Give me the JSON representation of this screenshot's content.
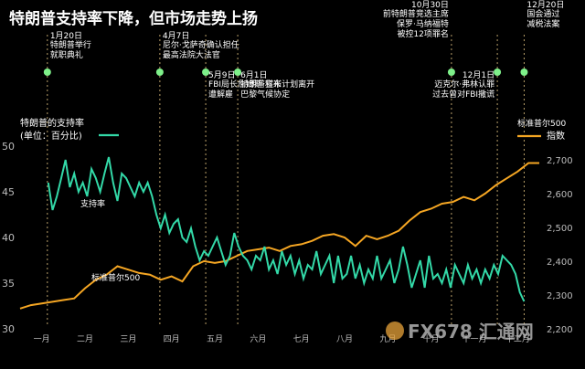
{
  "title": "特朗普支持率下降，但市场走势上扬",
  "colors": {
    "background": "#000000",
    "approval": "#33d9a8",
    "sp500": "#f5a623",
    "event_dot": "#7ef08a",
    "event_line": "#b9a06a",
    "text": "#ffffff",
    "axis_text": "#bdbdbd"
  },
  "legend": {
    "left_title": "特朗普的支持率",
    "left_unit": "(单位：百分比)",
    "right_title": "标准普尔500",
    "right_unit": "指数"
  },
  "annotations": {
    "approval_label": "支持率",
    "sp500_label": "标准普尔500"
  },
  "events": [
    {
      "date": "1月20日",
      "text": [
        "特朗普举行",
        "就职典礼"
      ],
      "month": 0.63
    },
    {
      "date": "4月7日",
      "text": [
        "尼尔·戈萨奇确认担任",
        "最高法院大法官"
      ],
      "month": 3.23
    },
    {
      "date": "5月9日",
      "text": [
        "FBI局长詹姆斯·科米",
        "遭解雇"
      ],
      "month": 4.29
    },
    {
      "date": "6月1日",
      "text": [
        "特朗普宣布计划离开",
        "巴黎气候协定"
      ],
      "month": 5.03
    },
    {
      "date": "10月30日",
      "text": [
        "前特朗普竞选主席",
        "保罗·马纳福特",
        "被控12项罪名"
      ],
      "month": 9.97
    },
    {
      "date": "12月1日",
      "text": [
        "迈克尔·弗林认罪",
        "过去曾对FBI撒谎"
      ],
      "month": 11.03
    },
    {
      "date": "12月20日",
      "text": [
        "国会通过",
        "减税法案"
      ],
      "month": 11.65
    }
  ],
  "watermark": {
    "text": "FX678 汇通网"
  },
  "chart_data": {
    "type": "line",
    "title": "特朗普支持率下降，但市场走势上扬",
    "x_ticks": [
      "一月",
      "二月",
      "三月",
      "四月",
      "五月",
      "六月",
      "七月",
      "八月",
      "九月",
      "十月",
      "十一月",
      "十二月"
    ],
    "x_range_months": [
      0,
      12
    ],
    "left_axis": {
      "label": "特朗普的支持率 (单位：百分比)",
      "ticks": [
        30,
        35,
        40,
        45,
        50
      ],
      "ylim": [
        30,
        50
      ]
    },
    "right_axis": {
      "label": "标准普尔500 指数",
      "ticks": [
        2200,
        2300,
        2400,
        2500,
        2600,
        2700
      ],
      "ylim": [
        2200,
        2740
      ]
    },
    "series": [
      {
        "name": "支持率",
        "axis": "left",
        "x": [
          0.65,
          0.75,
          0.85,
          0.95,
          1.05,
          1.15,
          1.25,
          1.35,
          1.45,
          1.55,
          1.65,
          1.75,
          1.85,
          1.95,
          2.05,
          2.15,
          2.25,
          2.35,
          2.45,
          2.55,
          2.65,
          2.75,
          2.85,
          2.95,
          3.05,
          3.15,
          3.25,
          3.35,
          3.45,
          3.55,
          3.65,
          3.75,
          3.85,
          3.95,
          4.05,
          4.15,
          4.25,
          4.35,
          4.45,
          4.55,
          4.65,
          4.75,
          4.85,
          4.95,
          5.05,
          5.15,
          5.25,
          5.35,
          5.45,
          5.55,
          5.65,
          5.75,
          5.85,
          5.95,
          6.05,
          6.15,
          6.25,
          6.35,
          6.45,
          6.55,
          6.65,
          6.75,
          6.85,
          6.95,
          7.05,
          7.15,
          7.25,
          7.35,
          7.45,
          7.55,
          7.65,
          7.75,
          7.85,
          7.95,
          8.05,
          8.15,
          8.25,
          8.35,
          8.45,
          8.55,
          8.65,
          8.75,
          8.85,
          8.95,
          9.05,
          9.15,
          9.25,
          9.35,
          9.45,
          9.55,
          9.65,
          9.75,
          9.85,
          9.95,
          10.05,
          10.15,
          10.25,
          10.35,
          10.45,
          10.55,
          10.65,
          10.75,
          10.85,
          10.95,
          11.05,
          11.15,
          11.25,
          11.35,
          11.45,
          11.55,
          11.65
        ],
        "y": [
          46,
          43,
          44.5,
          46.5,
          48.5,
          45.5,
          47,
          45,
          46,
          44.5,
          47.5,
          46.5,
          45,
          47,
          48.8,
          46,
          44,
          47,
          46.5,
          45.5,
          44.5,
          46,
          45,
          46,
          44.5,
          42.5,
          41,
          42.5,
          40.5,
          41.5,
          42,
          40,
          39.5,
          41,
          39,
          37.5,
          38.5,
          38,
          39,
          40,
          38.5,
          37,
          38,
          40.5,
          39,
          38,
          37.5,
          36.5,
          38,
          37.5,
          39,
          36.5,
          37.5,
          36,
          38.5,
          37,
          38,
          36,
          37.5,
          35.5,
          37,
          36.5,
          38.5,
          36,
          37,
          38,
          35,
          38,
          35.5,
          36,
          38,
          35.5,
          37,
          35,
          36.5,
          35.5,
          38,
          35.5,
          36.5,
          37.5,
          35,
          36.5,
          39,
          37,
          34.5,
          36,
          37.5,
          34.5,
          38,
          35.5,
          36,
          35,
          36.5,
          34.5,
          37,
          36,
          35,
          37,
          35.5,
          36.5,
          35,
          36.5,
          35.5,
          37,
          36,
          38,
          37.5,
          37,
          36,
          34,
          33
        ]
      },
      {
        "name": "标准普尔500",
        "axis": "right",
        "x": [
          0,
          0.25,
          0.5,
          0.75,
          1.0,
          1.25,
          1.5,
          1.75,
          2.0,
          2.25,
          2.5,
          2.75,
          3.0,
          3.25,
          3.5,
          3.75,
          4.0,
          4.25,
          4.5,
          4.75,
          5.0,
          5.25,
          5.5,
          5.75,
          6.0,
          6.25,
          6.5,
          6.75,
          7.0,
          7.25,
          7.5,
          7.75,
          8.0,
          8.25,
          8.5,
          8.75,
          9.0,
          9.25,
          9.5,
          9.75,
          10.0,
          10.25,
          10.5,
          10.75,
          11.0,
          11.25,
          11.5,
          11.75,
          12.0
        ],
        "y": [
          2260,
          2270,
          2275,
          2280,
          2285,
          2290,
          2320,
          2345,
          2360,
          2385,
          2375,
          2365,
          2360,
          2345,
          2355,
          2340,
          2385,
          2400,
          2395,
          2400,
          2415,
          2430,
          2435,
          2440,
          2430,
          2445,
          2450,
          2460,
          2475,
          2480,
          2470,
          2445,
          2475,
          2465,
          2475,
          2490,
          2520,
          2545,
          2555,
          2570,
          2575,
          2590,
          2580,
          2600,
          2625,
          2645,
          2665,
          2690,
          2690
        ]
      }
    ],
    "grid": false,
    "legend_placement": "top-left and top-right"
  }
}
